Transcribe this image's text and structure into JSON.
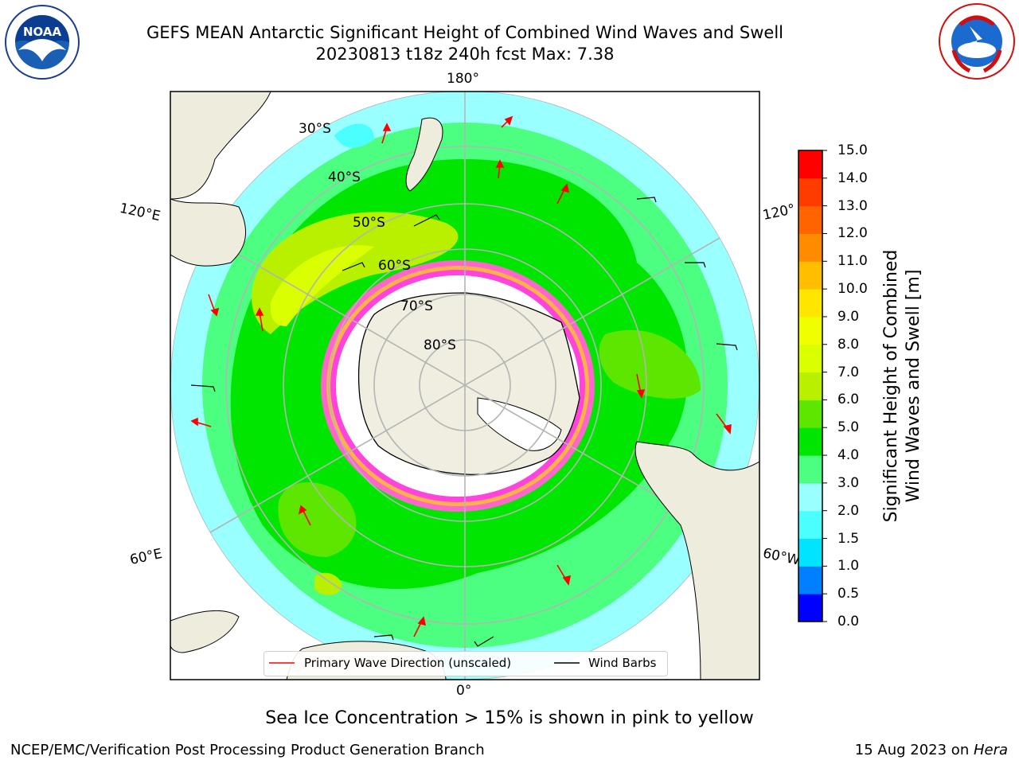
{
  "header": {
    "title_line1": "GEFS MEAN Antarctic Significant Height of Combined Wind Waves and Swell",
    "title_line2": "20230813 t18z 240h fcst   Max: 7.38"
  },
  "logos": {
    "left_text": "NOAA",
    "left_ring_text": "NATIONAL OCEANIC AND ATMOSPHERIC ADMINISTRATION · U.S. DEPARTMENT OF COMMERCE",
    "right_ring_text": "NATIONAL WEATHER SERVICE"
  },
  "map": {
    "longitude_labels": {
      "top": "180°",
      "bottom": "0°",
      "left_upper": "120°E",
      "left_lower": "60°E",
      "right_upper": "120°",
      "right_lower": "60°W"
    },
    "latitude_labels": [
      "30°S",
      "40°S",
      "50°S",
      "60°S",
      "70°S",
      "80°S"
    ]
  },
  "legend": {
    "wave_label": "Primary Wave Direction (unscaled)",
    "barb_label": "Wind Barbs",
    "wave_color": "#ff0000",
    "barb_color": "#000000"
  },
  "colorbar": {
    "label_line1": "Significant Height of Combined",
    "label_line2": "Wind Waves and Swell [m]",
    "ticks": [
      "0.0",
      "0.5",
      "1.0",
      "1.5",
      "2.0",
      "3.0",
      "4.0",
      "5.0",
      "6.0",
      "7.0",
      "8.0",
      "9.0",
      "10.0",
      "11.0",
      "12.0",
      "13.0",
      "14.0",
      "15.0"
    ],
    "colors": [
      "#0000ff",
      "#0080ff",
      "#00e4ff",
      "#4cffff",
      "#99ffff",
      "#4cff80",
      "#00e600",
      "#5ce600",
      "#b8f000",
      "#d9ff00",
      "#f0ff00",
      "#ffe600",
      "#ffbf00",
      "#ff8c00",
      "#ff6400",
      "#ff3c00",
      "#ff0000"
    ]
  },
  "caption": "Sea Ice Concentration > 15% is shown in pink to yellow",
  "footer": {
    "left": "NCEP/EMC/Verification Post Processing Product Generation Branch",
    "right_date": "15 Aug 2023 on ",
    "right_host": "Hera"
  }
}
